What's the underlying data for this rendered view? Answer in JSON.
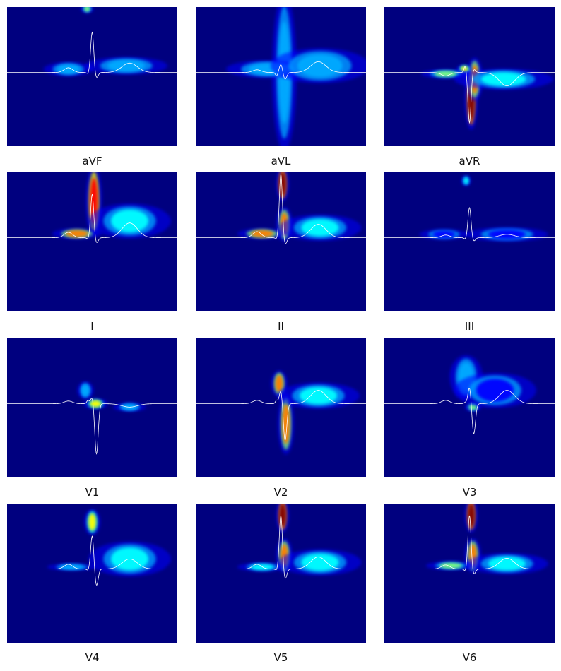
{
  "colors": {
    "background": "#00007f",
    "trace": "#ffffff",
    "colormap": [
      "#00007f",
      "#0000ff",
      "#00aaff",
      "#00ffff",
      "#7fff7f",
      "#ffff00",
      "#ff7f00",
      "#ff0000",
      "#7f0000"
    ]
  },
  "chart_data": {
    "type": "heatmap",
    "description": "12-lead ECG saliency heatmaps with overlaid average beat traces",
    "leads": [
      {
        "label": "aVF",
        "morph": {
          "p": 0.07,
          "q": -0.02,
          "r": 0.6,
          "s": -0.08,
          "t": 0.14,
          "baseline": 0.0
        },
        "hotspots": [
          {
            "x": 0.47,
            "y": 0.95,
            "w": 0.008,
            "h": 0.05,
            "i": 0.5
          },
          {
            "x": 0.36,
            "y": 0.05,
            "w": 0.03,
            "h": 0.08,
            "i": 0.25
          },
          {
            "x": 0.7,
            "y": 0.1,
            "w": 0.05,
            "h": 0.1,
            "i": 0.2
          }
        ]
      },
      {
        "label": "aVL",
        "morph": {
          "p": 0.04,
          "q": -0.05,
          "r": 0.12,
          "s": -0.1,
          "t": 0.16,
          "baseline": 0.0
        },
        "hotspots": [
          {
            "x": 0.52,
            "y": 0.0,
            "w": 0.015,
            "h": 0.9,
            "i": 0.3
          },
          {
            "x": 0.42,
            "y": 0.05,
            "w": 0.05,
            "h": 0.1,
            "i": 0.2
          },
          {
            "x": 0.73,
            "y": 0.1,
            "w": 0.06,
            "h": 0.2,
            "i": 0.25
          }
        ]
      },
      {
        "label": "aVR",
        "morph": {
          "p": -0.05,
          "q": 0.1,
          "r": -0.75,
          "s": 0.05,
          "t": -0.2,
          "baseline": 0.0
        },
        "hotspots": [
          {
            "x": 0.51,
            "y": -0.4,
            "w": 0.008,
            "h": 0.35,
            "i": 1.0
          },
          {
            "x": 0.53,
            "y": -0.1,
            "w": 0.01,
            "h": 0.25,
            "i": 0.7
          },
          {
            "x": 0.47,
            "y": 0.05,
            "w": 0.01,
            "h": 0.05,
            "i": 0.6
          },
          {
            "x": 0.36,
            "y": -0.02,
            "w": 0.03,
            "h": 0.05,
            "i": 0.45
          },
          {
            "x": 0.7,
            "y": -0.1,
            "w": 0.06,
            "h": 0.12,
            "i": 0.4
          }
        ]
      },
      {
        "label": "I",
        "morph": {
          "p": 0.08,
          "q": -0.02,
          "r": 0.65,
          "s": -0.08,
          "t": 0.22,
          "baseline": 0.0
        },
        "hotspots": [
          {
            "x": 0.51,
            "y": 0.55,
            "w": 0.01,
            "h": 0.4,
            "i": 0.85
          },
          {
            "x": 0.41,
            "y": 0.06,
            "w": 0.03,
            "h": 0.06,
            "i": 0.7
          },
          {
            "x": 0.72,
            "y": 0.25,
            "w": 0.05,
            "h": 0.2,
            "i": 0.35
          }
        ]
      },
      {
        "label": "II",
        "morph": {
          "p": 0.09,
          "q": -0.02,
          "r": 0.95,
          "s": -0.1,
          "t": 0.2,
          "baseline": 0.0
        },
        "hotspots": [
          {
            "x": 0.51,
            "y": 0.8,
            "w": 0.008,
            "h": 0.2,
            "i": 1.0
          },
          {
            "x": 0.52,
            "y": 0.2,
            "w": 0.01,
            "h": 0.2,
            "i": 0.8
          },
          {
            "x": 0.39,
            "y": 0.06,
            "w": 0.03,
            "h": 0.06,
            "i": 0.7
          },
          {
            "x": 0.73,
            "y": 0.15,
            "w": 0.05,
            "h": 0.15,
            "i": 0.35
          }
        ]
      },
      {
        "label": "III",
        "morph": {
          "p": 0.04,
          "q": -0.02,
          "r": 0.45,
          "s": -0.05,
          "t": 0.05,
          "baseline": 0.0
        },
        "hotspots": [
          {
            "x": 0.48,
            "y": 0.85,
            "w": 0.006,
            "h": 0.06,
            "i": 0.35
          },
          {
            "x": 0.35,
            "y": 0.05,
            "w": 0.03,
            "h": 0.06,
            "i": 0.15
          },
          {
            "x": 0.72,
            "y": 0.05,
            "w": 0.05,
            "h": 0.08,
            "i": 0.12
          }
        ]
      },
      {
        "label": "V1",
        "morph": {
          "p": 0.04,
          "q": 0.05,
          "r": 0.1,
          "s": -0.75,
          "t": -0.05,
          "baseline": 0.0
        },
        "hotspots": [
          {
            "x": 0.52,
            "y": 0.0,
            "w": 0.015,
            "h": 0.06,
            "i": 0.6
          },
          {
            "x": 0.46,
            "y": 0.2,
            "w": 0.01,
            "h": 0.1,
            "i": 0.3
          },
          {
            "x": 0.72,
            "y": -0.05,
            "w": 0.02,
            "h": 0.05,
            "i": 0.2
          }
        ]
      },
      {
        "label": "V2",
        "morph": {
          "p": 0.05,
          "q": 0.05,
          "r": 0.2,
          "s": -0.55,
          "t": 0.2,
          "baseline": 0.0
        },
        "hotspots": [
          {
            "x": 0.49,
            "y": 0.3,
            "w": 0.01,
            "h": 0.15,
            "i": 0.75
          },
          {
            "x": 0.53,
            "y": -0.3,
            "w": 0.01,
            "h": 0.35,
            "i": 0.7
          },
          {
            "x": 0.72,
            "y": 0.12,
            "w": 0.05,
            "h": 0.15,
            "i": 0.4
          }
        ]
      },
      {
        "label": "V3",
        "morph": {
          "p": 0.05,
          "q": 0.02,
          "r": 0.25,
          "s": -0.45,
          "t": 0.2,
          "baseline": 0.0
        },
        "hotspots": [
          {
            "x": 0.52,
            "y": -0.05,
            "w": 0.01,
            "h": 0.05,
            "i": 0.5
          },
          {
            "x": 0.48,
            "y": 0.4,
            "w": 0.02,
            "h": 0.25,
            "i": 0.2
          },
          {
            "x": 0.65,
            "y": 0.2,
            "w": 0.05,
            "h": 0.2,
            "i": 0.15
          }
        ]
      },
      {
        "label": "V4",
        "morph": {
          "p": 0.07,
          "q": -0.02,
          "r": 0.5,
          "s": -0.25,
          "t": 0.15,
          "baseline": 0.0
        },
        "hotspots": [
          {
            "x": 0.5,
            "y": 0.7,
            "w": 0.01,
            "h": 0.15,
            "i": 0.65
          },
          {
            "x": 0.38,
            "y": 0.03,
            "w": 0.03,
            "h": 0.04,
            "i": 0.3
          },
          {
            "x": 0.72,
            "y": 0.15,
            "w": 0.05,
            "h": 0.2,
            "i": 0.35
          }
        ]
      },
      {
        "label": "V5",
        "morph": {
          "p": 0.07,
          "q": -0.02,
          "r": 0.8,
          "s": -0.15,
          "t": 0.18,
          "baseline": 0.0
        },
        "hotspots": [
          {
            "x": 0.51,
            "y": 0.8,
            "w": 0.008,
            "h": 0.2,
            "i": 1.0
          },
          {
            "x": 0.52,
            "y": 0.2,
            "w": 0.01,
            "h": 0.2,
            "i": 0.75
          },
          {
            "x": 0.39,
            "y": 0.03,
            "w": 0.03,
            "h": 0.05,
            "i": 0.4
          },
          {
            "x": 0.73,
            "y": 0.1,
            "w": 0.05,
            "h": 0.15,
            "i": 0.4
          }
        ]
      },
      {
        "label": "V6",
        "morph": {
          "p": 0.06,
          "q": -0.03,
          "r": 0.8,
          "s": -0.08,
          "t": 0.16,
          "baseline": 0.0
        },
        "hotspots": [
          {
            "x": 0.51,
            "y": 0.8,
            "w": 0.008,
            "h": 0.2,
            "i": 1.0
          },
          {
            "x": 0.52,
            "y": 0.2,
            "w": 0.01,
            "h": 0.2,
            "i": 0.75
          },
          {
            "x": 0.39,
            "y": 0.05,
            "w": 0.03,
            "h": 0.05,
            "i": 0.55
          },
          {
            "x": 0.72,
            "y": 0.08,
            "w": 0.05,
            "h": 0.12,
            "i": 0.4
          }
        ]
      }
    ]
  }
}
